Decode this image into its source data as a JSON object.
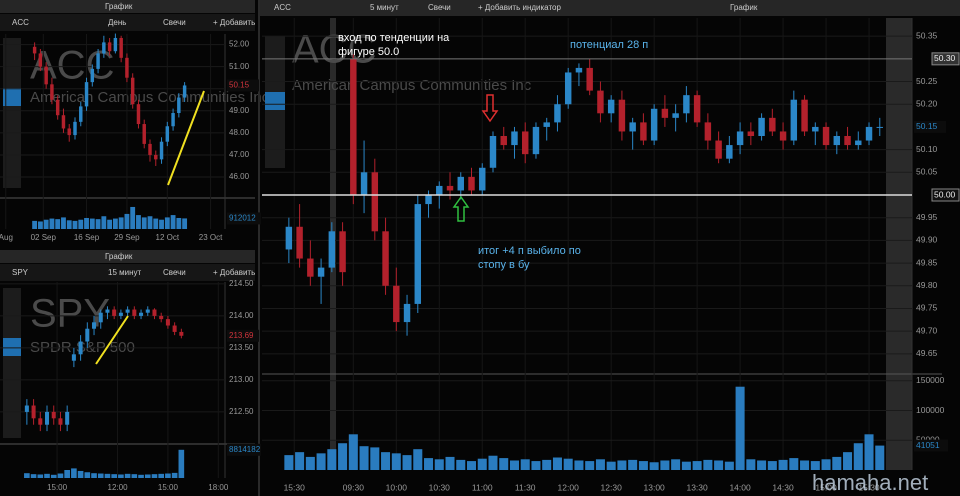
{
  "windows": [
    {
      "title": "График",
      "symbol": "ACC",
      "period": "День",
      "style": "Свечи",
      "add": "+ Добавить",
      "name": "American Campus Communities Inc",
      "chart": {
        "type": "candlestick",
        "colors": {
          "up": "#2b87c8",
          "down": "#b3212c",
          "last": "#d0343c"
        },
        "candles": [
          [
            51.9,
            52.1,
            51.3,
            51.6
          ],
          [
            51.6,
            51.8,
            50.8,
            51.0
          ],
          [
            51.0,
            51.2,
            50.0,
            50.2
          ],
          [
            50.2,
            50.5,
            49.3,
            49.5
          ],
          [
            49.5,
            49.7,
            48.6,
            48.8
          ],
          [
            48.8,
            49.1,
            48.0,
            48.2
          ],
          [
            48.2,
            48.4,
            47.6,
            47.9
          ],
          [
            47.9,
            48.7,
            47.7,
            48.5
          ],
          [
            48.5,
            49.4,
            48.3,
            49.2
          ],
          [
            49.2,
            50.5,
            49.0,
            50.3
          ],
          [
            50.3,
            51.1,
            50.1,
            50.9
          ],
          [
            50.9,
            51.8,
            50.7,
            51.6
          ],
          [
            51.6,
            52.4,
            51.4,
            52.1
          ],
          [
            52.1,
            52.3,
            51.5,
            51.7
          ],
          [
            51.7,
            52.5,
            51.6,
            52.3
          ],
          [
            52.3,
            52.4,
            51.2,
            51.4
          ],
          [
            51.4,
            51.6,
            50.3,
            50.5
          ],
          [
            50.5,
            50.7,
            49.1,
            49.3
          ],
          [
            49.3,
            49.5,
            48.2,
            48.4
          ],
          [
            48.4,
            48.6,
            47.3,
            47.5
          ],
          [
            47.5,
            47.7,
            46.7,
            47.0
          ],
          [
            47.0,
            47.2,
            46.5,
            46.8
          ],
          [
            46.8,
            47.8,
            46.6,
            47.6
          ],
          [
            47.6,
            48.5,
            47.4,
            48.3
          ],
          [
            48.3,
            49.1,
            48.1,
            48.9
          ],
          [
            48.9,
            49.8,
            48.7,
            49.6
          ],
          [
            49.6,
            50.3,
            49.4,
            50.15
          ]
        ],
        "xlim": [
          -6,
          33
        ],
        "xticks": [
          {
            "value": -5,
            "label": "Aug"
          },
          {
            "value": 1.5,
            "label": "02 Sep"
          },
          {
            "value": 9,
            "label": "16 Sep"
          },
          {
            "value": 16,
            "label": "29 Sep"
          },
          {
            "value": 23,
            "label": "12 Oct"
          },
          {
            "value": 30.5,
            "label": "23 Oct"
          }
        ],
        "ylim": [
          45.14,
          52.48
        ],
        "yticks": [
          {
            "value": 52,
            "label": "52.00"
          },
          {
            "value": 51,
            "label": "51.00"
          },
          {
            "value": 50,
            "label": "50.00"
          },
          {
            "value": 49,
            "label": "49.00"
          },
          {
            "value": 48,
            "label": "48.00"
          },
          {
            "value": 47,
            "label": "47.00"
          },
          {
            "value": 46,
            "label": "46.00"
          }
        ],
        "last": {
          "value": 50.15,
          "label": "50.15"
        },
        "volume": [
          700000,
          650000,
          800000,
          900000,
          850000,
          1000000,
          750000,
          700000,
          800000,
          950000,
          900000,
          850000,
          1100000,
          800000,
          900000,
          1000000,
          1300000,
          1900000,
          1200000,
          1000000,
          1100000,
          900000,
          800000,
          1000000,
          1200000,
          950000,
          912012
        ],
        "volume_ylim": [
          0,
          2500000
        ],
        "volume_ticks": [],
        "volume_last": 912012
      }
    },
    {
      "title": "График",
      "symbol": "SPY",
      "period": "15 минут",
      "style": "Свечи",
      "add": "+ Добавить",
      "name": "SPDR S&P 500",
      "chart": {
        "type": "candlestick",
        "colors": {
          "up": "#2b87c8",
          "down": "#b3212c",
          "last": "#d0343c"
        },
        "candles": [
          [
            212.5,
            212.7,
            212.3,
            212.6
          ],
          [
            212.6,
            212.7,
            212.3,
            212.4
          ],
          [
            212.4,
            212.5,
            212.2,
            212.3
          ],
          [
            212.3,
            212.6,
            212.2,
            212.5
          ],
          [
            212.5,
            212.6,
            212.3,
            212.4
          ],
          [
            212.4,
            212.5,
            212.2,
            212.3
          ],
          [
            212.3,
            212.6,
            212.2,
            212.5
          ],
          [
            213.3,
            213.5,
            213.2,
            213.4
          ],
          [
            213.4,
            213.7,
            213.3,
            213.6
          ],
          [
            213.6,
            213.9,
            213.5,
            213.8
          ],
          [
            213.8,
            214.0,
            213.7,
            213.9
          ],
          [
            213.9,
            214.1,
            213.8,
            214.05
          ],
          [
            214.05,
            214.15,
            213.95,
            214.1
          ],
          [
            214.1,
            214.15,
            213.95,
            214.0
          ],
          [
            214.0,
            214.1,
            213.95,
            214.05
          ],
          [
            214.05,
            214.15,
            214.0,
            214.1
          ],
          [
            214.1,
            214.15,
            213.95,
            214.0
          ],
          [
            214.0,
            214.1,
            213.95,
            214.05
          ],
          [
            214.05,
            214.15,
            214.0,
            214.1
          ],
          [
            214.1,
            214.12,
            213.95,
            214.0
          ],
          [
            214.0,
            214.05,
            213.9,
            213.95
          ],
          [
            213.95,
            214.0,
            213.8,
            213.85
          ],
          [
            213.85,
            213.9,
            213.7,
            213.75
          ],
          [
            213.75,
            213.8,
            213.65,
            213.69
          ]
        ],
        "xlim": [
          -4,
          29.5
        ],
        "xticks": [
          {
            "value": 4.5,
            "label": "15:00"
          },
          {
            "value": 13.5,
            "label": "12:00"
          },
          {
            "value": 21,
            "label": "15:00"
          },
          {
            "value": 28.5,
            "label": "18:00"
          }
        ],
        "ylim": [
          212.03,
          214.53
        ],
        "yticks": [
          {
            "value": 214.5,
            "label": "214.50"
          },
          {
            "value": 214,
            "label": "214.00"
          },
          {
            "value": 213.5,
            "label": "213.50"
          },
          {
            "value": 213,
            "label": "213.00"
          },
          {
            "value": 212.5,
            "label": "212.50"
          }
        ],
        "last": {
          "value": 213.69,
          "label": "213.69"
        },
        "volume": [
          1500000,
          1200000,
          1100000,
          1300000,
          1000000,
          1400000,
          2500000,
          3000000,
          2200000,
          1800000,
          1500000,
          1400000,
          1300000,
          1200000,
          1100000,
          1300000,
          1200000,
          1000000,
          1100000,
          1200000,
          1300000,
          1400000,
          1600000,
          8814182
        ],
        "volume_ylim": [
          0,
          10000000
        ],
        "volume_ticks": [],
        "volume_last": 8814182
      }
    },
    {
      "title": "График",
      "symbol": "ACC",
      "period": "5 минут",
      "style": "Свечи",
      "add": "+ Добавить индикатор",
      "name": "American Campus Communities Inc",
      "chart": {
        "type": "candlestick",
        "colors": {
          "up": "#2b87c8",
          "down": "#b3212c",
          "last": "#2b87c8"
        },
        "candles": [
          [
            49.88,
            49.95,
            49.85,
            49.93
          ],
          [
            49.93,
            49.98,
            49.84,
            49.86
          ],
          [
            49.86,
            49.9,
            49.8,
            49.82
          ],
          [
            49.82,
            49.86,
            49.76,
            49.84
          ],
          [
            49.84,
            49.94,
            49.83,
            49.92
          ],
          [
            49.92,
            49.94,
            49.8,
            49.83
          ],
          [
            50.3,
            50.31,
            49.98,
            50.0
          ],
          [
            50.0,
            50.12,
            49.96,
            50.05
          ],
          [
            50.05,
            50.08,
            49.9,
            49.92
          ],
          [
            49.92,
            49.95,
            49.78,
            49.8
          ],
          [
            49.8,
            49.84,
            49.7,
            49.72
          ],
          [
            49.72,
            49.78,
            49.69,
            49.76
          ],
          [
            49.76,
            50.0,
            49.74,
            49.98
          ],
          [
            49.98,
            50.01,
            49.95,
            50.0
          ],
          [
            50.0,
            50.03,
            49.97,
            50.02
          ],
          [
            50.02,
            50.05,
            49.99,
            50.01
          ],
          [
            50.01,
            50.05,
            49.99,
            50.04
          ],
          [
            50.04,
            50.06,
            50.0,
            50.01
          ],
          [
            50.01,
            50.07,
            50.0,
            50.06
          ],
          [
            50.06,
            50.14,
            50.05,
            50.13
          ],
          [
            50.13,
            50.15,
            50.1,
            50.11
          ],
          [
            50.11,
            50.15,
            50.08,
            50.14
          ],
          [
            50.14,
            50.16,
            50.07,
            50.09
          ],
          [
            50.09,
            50.16,
            50.08,
            50.15
          ],
          [
            50.15,
            50.17,
            50.12,
            50.16
          ],
          [
            50.16,
            50.22,
            50.14,
            50.2
          ],
          [
            50.2,
            50.28,
            50.19,
            50.27
          ],
          [
            50.27,
            50.29,
            50.24,
            50.28
          ],
          [
            50.28,
            50.3,
            50.22,
            50.23
          ],
          [
            50.23,
            50.25,
            50.16,
            50.18
          ],
          [
            50.18,
            50.22,
            50.16,
            50.21
          ],
          [
            50.21,
            50.23,
            50.12,
            50.14
          ],
          [
            50.14,
            50.17,
            50.1,
            50.16
          ],
          [
            50.16,
            50.18,
            50.11,
            50.12
          ],
          [
            50.12,
            50.2,
            50.11,
            50.19
          ],
          [
            50.19,
            50.22,
            50.15,
            50.17
          ],
          [
            50.17,
            50.2,
            50.14,
            50.18
          ],
          [
            50.18,
            50.24,
            50.16,
            50.22
          ],
          [
            50.22,
            50.23,
            50.15,
            50.16
          ],
          [
            50.16,
            50.18,
            50.1,
            50.12
          ],
          [
            50.12,
            50.14,
            50.07,
            50.08
          ],
          [
            50.08,
            50.13,
            50.07,
            50.11
          ],
          [
            50.11,
            50.16,
            50.09,
            50.14
          ],
          [
            50.14,
            50.16,
            50.11,
            50.13
          ],
          [
            50.13,
            50.18,
            50.12,
            50.17
          ],
          [
            50.17,
            50.19,
            50.13,
            50.14
          ],
          [
            50.14,
            50.16,
            50.1,
            50.12
          ],
          [
            50.12,
            50.23,
            50.11,
            50.21
          ],
          [
            50.21,
            50.22,
            50.13,
            50.14
          ],
          [
            50.14,
            50.16,
            50.11,
            50.15
          ],
          [
            50.15,
            50.16,
            50.1,
            50.11
          ],
          [
            50.11,
            50.14,
            50.09,
            50.13
          ],
          [
            50.13,
            50.15,
            50.1,
            50.11
          ],
          [
            50.11,
            50.14,
            50.1,
            50.12
          ],
          [
            50.12,
            50.16,
            50.11,
            50.15
          ],
          [
            50.15,
            50.17,
            50.13,
            50.15
          ]
        ],
        "xlim": [
          -2.5,
          58
        ],
        "xticks": [
          {
            "value": 0.5,
            "label": "15:30"
          },
          {
            "value": 6,
            "label": "09:30"
          },
          {
            "value": 10,
            "label": "10:00"
          },
          {
            "value": 14,
            "label": "10:30"
          },
          {
            "value": 18,
            "label": "11:00"
          },
          {
            "value": 22,
            "label": "11:30"
          },
          {
            "value": 26,
            "label": "12:00"
          },
          {
            "value": 30,
            "label": "12:30"
          },
          {
            "value": 34,
            "label": "13:00"
          },
          {
            "value": 38,
            "label": "13:30"
          },
          {
            "value": 42,
            "label": "14:00"
          },
          {
            "value": 46,
            "label": "14:30"
          },
          {
            "value": 50,
            "label": "15:00"
          },
          {
            "value": 54,
            "label": "15:30"
          }
        ],
        "ylim": [
          49.61,
          50.39
        ],
        "yticks": [
          50.35,
          50.25,
          {
            "value": 50.2,
            "label": "50.20"
          },
          {
            "value": 50.1,
            "label": "50.10"
          },
          50.05,
          49.95,
          {
            "value": 49.9,
            "label": "49.90"
          },
          49.85,
          {
            "value": 49.8,
            "label": "49.80"
          },
          49.75,
          {
            "value": 49.7,
            "label": "49.70"
          },
          49.65
        ],
        "levels": [
          {
            "value": 50.3,
            "label": "50.30"
          },
          {
            "value": 50.0,
            "label": "50.00"
          }
        ],
        "last": {
          "value": 50.15,
          "label": "50.15"
        },
        "volume": [
          25000,
          30000,
          22000,
          28000,
          35000,
          45000,
          60000,
          40000,
          38000,
          30000,
          28000,
          25000,
          35000,
          20000,
          18000,
          22000,
          17000,
          15000,
          19000,
          24000,
          20000,
          16000,
          18000,
          15000,
          17000,
          21000,
          19000,
          16000,
          15000,
          18000,
          14000,
          16000,
          17000,
          15000,
          13000,
          16000,
          18000,
          14000,
          15000,
          17000,
          16000,
          14000,
          140000,
          18000,
          16000,
          15000,
          17000,
          20000,
          16000,
          15000,
          18000,
          22000,
          30000,
          45000,
          60000,
          41051
        ],
        "volume_ylim": [
          0,
          158000
        ],
        "volume_ticks": [
          150000,
          100000,
          50000
        ],
        "volume_last": 41051
      }
    }
  ],
  "annotations": [
    {
      "lines": [
        "вход по тенденции на",
        "фигуре 50.0"
      ]
    },
    {
      "lines": [
        "потенциал 28 п"
      ]
    },
    {
      "lines": [
        "итог +4 п выбило по",
        "стопу в бу"
      ]
    }
  ],
  "watermark": "hamaha.net"
}
